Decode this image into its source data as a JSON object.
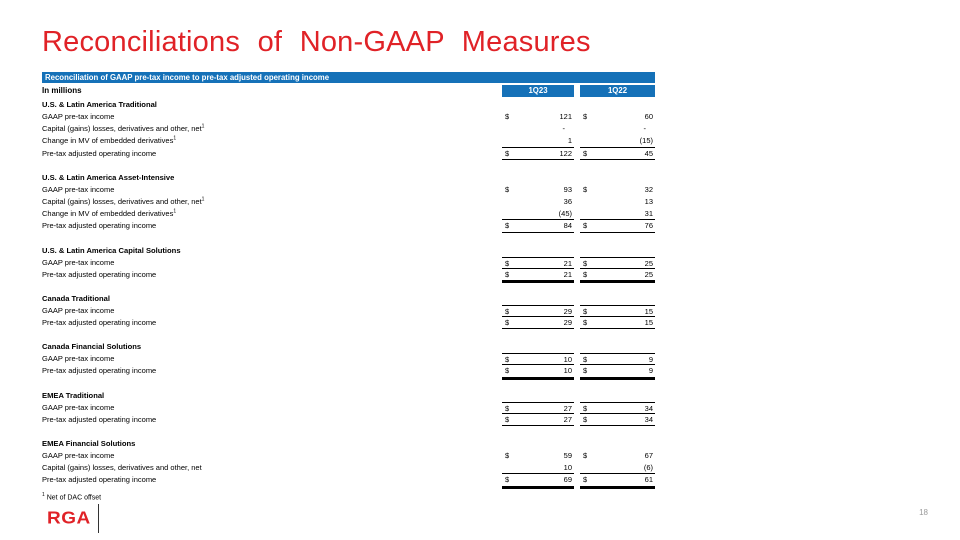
{
  "slide": {
    "title": "Reconciliations of Non-GAAP Measures",
    "page_number": "18"
  },
  "colors": {
    "accent_red": "#E02227",
    "header_blue": "#1571B8"
  },
  "table": {
    "header_bar": "Reconciliation of GAAP pre-tax income to pre-tax adjusted operating income",
    "units_label": "In millions",
    "columns": [
      "1Q23",
      "1Q22"
    ],
    "sections": [
      {
        "name": "U.S. & Latin America Traditional",
        "rows": [
          {
            "label": "GAAP pre-tax income",
            "sup": "",
            "d1": "$",
            "v1": "121",
            "d2": "$",
            "v2": "60",
            "lines": ""
          },
          {
            "label": "Capital (gains) losses, derivatives and other, net",
            "sup": "1",
            "d1": "",
            "v1": "-",
            "d2": "",
            "v2": "-",
            "lines": ""
          },
          {
            "label": "Change in MV of embedded derivatives",
            "sup": "1",
            "d1": "",
            "v1": "1",
            "d2": "",
            "v2": "(15)",
            "lines": "b"
          },
          {
            "label": "Pre-tax adjusted operating income",
            "sup": "",
            "d1": "$",
            "v1": "122",
            "d2": "$",
            "v2": "45",
            "lines": "b"
          }
        ]
      },
      {
        "name": "U.S. & Latin America Asset-Intensive",
        "rows": [
          {
            "label": "GAAP pre-tax income",
            "sup": "",
            "d1": "$",
            "v1": "93",
            "d2": "$",
            "v2": "32",
            "lines": ""
          },
          {
            "label": "Capital (gains) losses, derivatives and other, net",
            "sup": "1",
            "d1": "",
            "v1": "36",
            "d2": "",
            "v2": "13",
            "lines": ""
          },
          {
            "label": "Change in MV of embedded derivatives",
            "sup": "1",
            "d1": "",
            "v1": "(45)",
            "d2": "",
            "v2": "31",
            "lines": "b"
          },
          {
            "label": "Pre-tax adjusted operating income",
            "sup": "",
            "d1": "$",
            "v1": "84",
            "d2": "$",
            "v2": "76",
            "lines": "b"
          }
        ]
      },
      {
        "name": "U.S. & Latin America Capital Solutions",
        "rows": [
          {
            "label": "GAAP pre-tax income",
            "sup": "",
            "d1": "$",
            "v1": "21",
            "d2": "$",
            "v2": "25",
            "lines": "tb"
          },
          {
            "label": "Pre-tax adjusted operating income",
            "sup": "",
            "d1": "$",
            "v1": "21",
            "d2": "$",
            "v2": "25",
            "lines": "bd"
          }
        ]
      },
      {
        "name": "Canada Traditional",
        "rows": [
          {
            "label": "GAAP pre-tax income",
            "sup": "",
            "d1": "$",
            "v1": "29",
            "d2": "$",
            "v2": "15",
            "lines": "tb"
          },
          {
            "label": "Pre-tax adjusted operating income",
            "sup": "",
            "d1": "$",
            "v1": "29",
            "d2": "$",
            "v2": "15",
            "lines": "b"
          }
        ]
      },
      {
        "name": "Canada Financial Solutions",
        "rows": [
          {
            "label": "GAAP pre-tax income",
            "sup": "",
            "d1": "$",
            "v1": "10",
            "d2": "$",
            "v2": "9",
            "lines": "tb"
          },
          {
            "label": "Pre-tax adjusted operating income",
            "sup": "",
            "d1": "$",
            "v1": "10",
            "d2": "$",
            "v2": "9",
            "lines": "bd"
          }
        ]
      },
      {
        "name": "EMEA Traditional",
        "rows": [
          {
            "label": "GAAP pre-tax income",
            "sup": "",
            "d1": "$",
            "v1": "27",
            "d2": "$",
            "v2": "34",
            "lines": "tb"
          },
          {
            "label": "Pre-tax adjusted operating income",
            "sup": "",
            "d1": "$",
            "v1": "27",
            "d2": "$",
            "v2": "34",
            "lines": "b"
          }
        ]
      },
      {
        "name": "EMEA Financial Solutions",
        "rows": [
          {
            "label": "GAAP pre-tax income",
            "sup": "",
            "d1": "$",
            "v1": "59",
            "d2": "$",
            "v2": "67",
            "lines": ""
          },
          {
            "label": "Capital (gains) losses, derivatives and other, net",
            "sup": "",
            "d1": "",
            "v1": "10",
            "d2": "",
            "v2": "(6)",
            "lines": "b"
          },
          {
            "label": "Pre-tax adjusted operating income",
            "sup": "",
            "d1": "$",
            "v1": "69",
            "d2": "$",
            "v2": "61",
            "lines": "bd"
          }
        ]
      }
    ],
    "footnote": {
      "sup": "1",
      "text": " Net of DAC offset"
    }
  },
  "footer": {
    "logo_text": "RGA"
  }
}
